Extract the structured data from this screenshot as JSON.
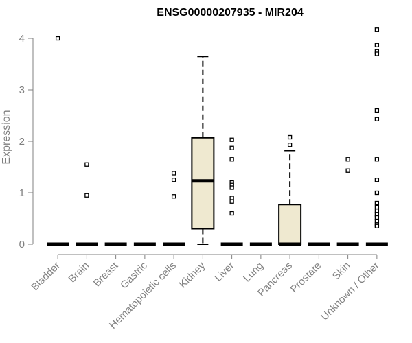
{
  "chart_data": {
    "type": "boxplot",
    "title": "ENSG00000207935 - MIR204",
    "xlabel": "",
    "ylabel": "Expression",
    "ylim": [
      0,
      4.2
    ],
    "yticks": [
      0,
      1,
      2,
      3,
      4
    ],
    "grid": false,
    "box_color": "#efe9d0",
    "categories": [
      "Bladder",
      "Brain",
      "Breast",
      "Gastric",
      "Hematopoietic cells",
      "Kidney",
      "Liver",
      "Lung",
      "Pancreas",
      "Prostate",
      "Skin",
      "Unknown / Other"
    ],
    "boxes": [
      {
        "min": 0,
        "q1": 0,
        "median": 0,
        "q3": 0,
        "max": 0,
        "outliers": [
          4.0
        ]
      },
      {
        "min": 0,
        "q1": 0,
        "median": 0,
        "q3": 0,
        "max": 0,
        "outliers": [
          1.55,
          0.95
        ]
      },
      {
        "min": 0,
        "q1": 0,
        "median": 0,
        "q3": 0,
        "max": 0,
        "outliers": []
      },
      {
        "min": 0,
        "q1": 0,
        "median": 0,
        "q3": 0,
        "max": 0,
        "outliers": []
      },
      {
        "min": 0,
        "q1": 0,
        "median": 0,
        "q3": 0,
        "max": 0,
        "outliers": [
          1.38,
          1.25,
          0.93
        ]
      },
      {
        "min": 0,
        "q1": 0.3,
        "median": 1.23,
        "q3": 2.07,
        "max": 3.65,
        "outliers": []
      },
      {
        "min": 0,
        "q1": 0,
        "median": 0,
        "q3": 0,
        "max": 0,
        "outliers": [
          2.03,
          1.87,
          1.65,
          1.2,
          1.15,
          1.1,
          0.9,
          0.83,
          0.6
        ]
      },
      {
        "min": 0,
        "q1": 0,
        "median": 0,
        "q3": 0,
        "max": 0,
        "outliers": []
      },
      {
        "min": 0,
        "q1": 0,
        "median": 0,
        "q3": 0.77,
        "max": 1.82,
        "outliers": [
          2.08,
          1.93
        ]
      },
      {
        "min": 0,
        "q1": 0,
        "median": 0,
        "q3": 0,
        "max": 0,
        "outliers": []
      },
      {
        "min": 0,
        "q1": 0,
        "median": 0,
        "q3": 0,
        "max": 0,
        "outliers": [
          1.65,
          1.43
        ]
      },
      {
        "min": 0,
        "q1": 0,
        "median": 0,
        "q3": 0,
        "max": 0,
        "outliers": [
          4.17,
          3.87,
          3.75,
          3.7,
          2.6,
          2.43,
          1.65,
          1.25,
          1.0,
          0.8,
          0.72,
          0.65,
          0.58,
          0.52,
          0.45,
          0.38,
          0.35
        ]
      }
    ]
  }
}
